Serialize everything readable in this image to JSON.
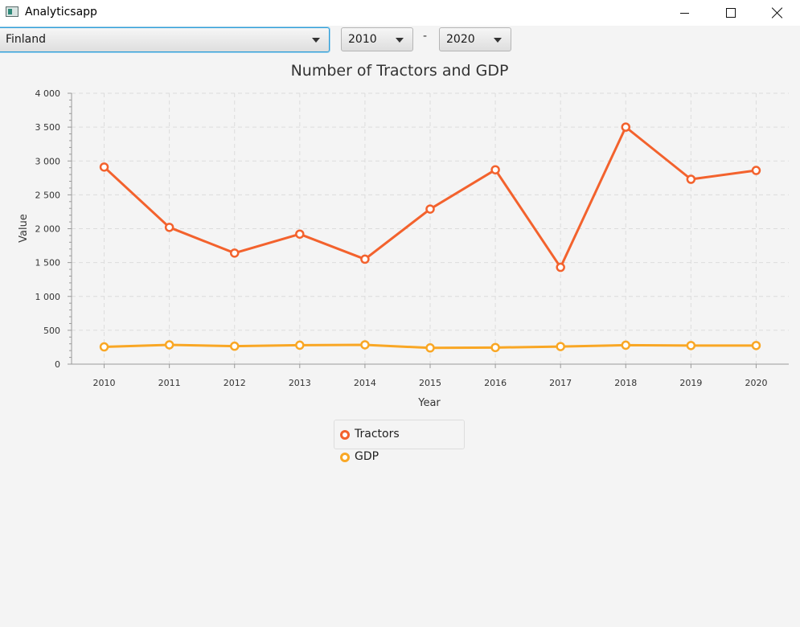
{
  "window": {
    "title": "Analyticsapp",
    "controls": [
      "minimize-icon",
      "maximize-icon",
      "close-icon"
    ]
  },
  "toolbar": {
    "country": "Finland",
    "from_year": "2010",
    "to_year": "2020",
    "separator": "-"
  },
  "colors": {
    "tractors": "#f3622d",
    "gdp": "#f9a725",
    "focus": "#2b9bd6"
  },
  "chart_data": {
    "type": "line",
    "title": "Number of Tractors and GDP",
    "xlabel": "Year",
    "ylabel": "Value",
    "categories": [
      "2010",
      "2011",
      "2012",
      "2013",
      "2014",
      "2015",
      "2016",
      "2017",
      "2018",
      "2019",
      "2020"
    ],
    "ylim": [
      0,
      4000
    ],
    "yticks": [
      0,
      500,
      1000,
      1500,
      2000,
      2500,
      3000,
      3500,
      4000
    ],
    "ytick_labels": [
      "0",
      "500",
      "1 000",
      "1 500",
      "2 000",
      "2 500",
      "3 000",
      "3 500",
      "4 000"
    ],
    "grid": true,
    "legend_position": "bottom-center",
    "series": [
      {
        "name": "Tractors",
        "values": [
          2910,
          2020,
          1640,
          1920,
          1550,
          2290,
          2870,
          1430,
          3500,
          2730,
          2860
        ]
      },
      {
        "name": "GDP",
        "values": [
          255,
          285,
          265,
          280,
          285,
          240,
          245,
          260,
          280,
          275,
          275
        ]
      }
    ]
  }
}
